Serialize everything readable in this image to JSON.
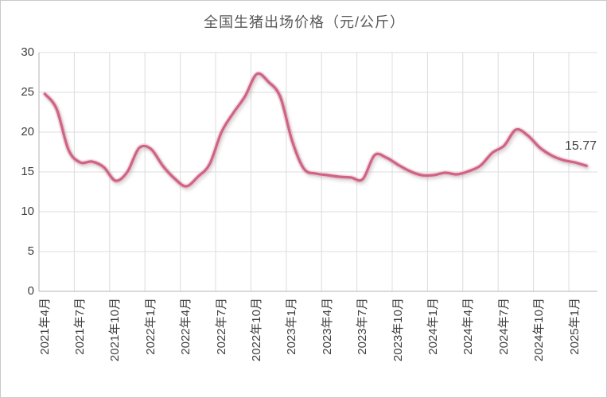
{
  "chart_data": {
    "type": "line",
    "title": "全国生猪出场价格（元/公斤）",
    "unit": "元/公斤",
    "x": [
      "2021年4月",
      "2021年5月",
      "2021年6月",
      "2021年7月",
      "2021年8月",
      "2021年9月",
      "2021年10月",
      "2021年11月",
      "2021年12月",
      "2022年1月",
      "2022年2月",
      "2022年3月",
      "2022年4月",
      "2022年5月",
      "2022年6月",
      "2022年7月",
      "2022年8月",
      "2022年9月",
      "2022年10月",
      "2022年11月",
      "2022年12月",
      "2023年1月",
      "2023年2月",
      "2023年3月",
      "2023年4月",
      "2023年5月",
      "2023年6月",
      "2023年7月",
      "2023年8月",
      "2023年9月",
      "2023年10月",
      "2023年11月",
      "2023年12月",
      "2024年1月",
      "2024年2月",
      "2024年3月",
      "2024年4月",
      "2024年5月",
      "2024年6月",
      "2024年7月",
      "2024年8月",
      "2024年9月",
      "2024年10月",
      "2024年11月",
      "2024年12月",
      "2025年1月",
      "2025年2月"
    ],
    "values": [
      24.8,
      22.9,
      17.8,
      16.2,
      16.3,
      15.6,
      13.9,
      15.0,
      18.0,
      17.9,
      15.8,
      14.2,
      13.2,
      14.4,
      16.0,
      20.0,
      22.4,
      24.5,
      27.3,
      26.3,
      24.4,
      18.9,
      15.4,
      14.8,
      14.6,
      14.4,
      14.3,
      14.1,
      17.1,
      16.8,
      15.9,
      15.1,
      14.6,
      14.6,
      14.9,
      14.7,
      15.1,
      15.8,
      17.4,
      18.3,
      20.3,
      19.6,
      18.1,
      17.1,
      16.5,
      16.2,
      15.77
    ],
    "x_tick_labels": [
      "2021年4月",
      "2021年7月",
      "2021年10月",
      "2022年1月",
      "2022年4月",
      "2022年7月",
      "2022年10月",
      "2023年1月",
      "2023年4月",
      "2023年7月",
      "2023年10月",
      "2024年1月",
      "2024年4月",
      "2024年7月",
      "2024年10月",
      "2025年1月"
    ],
    "y_ticks": [
      0,
      5,
      10,
      15,
      20,
      25,
      30
    ],
    "ylim": [
      0,
      30
    ],
    "grid": true,
    "legend": "none",
    "line_color": "#d06383",
    "grid_color": "#dcdcdc",
    "axis_color": "#b3b3b3",
    "last_point_label": "15.77"
  }
}
